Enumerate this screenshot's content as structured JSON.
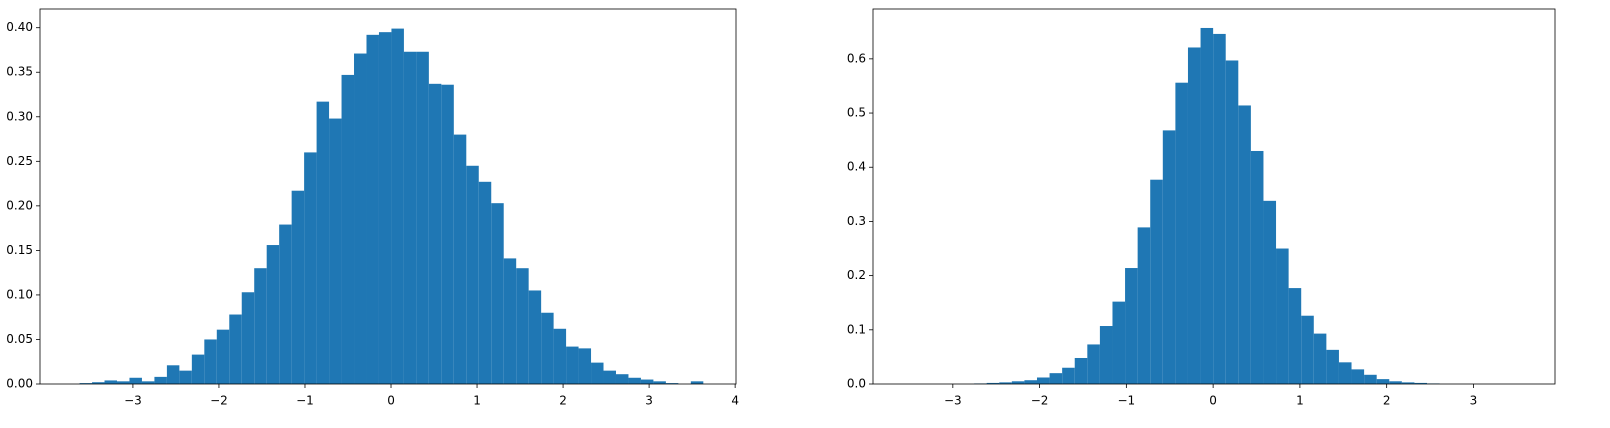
{
  "chart_data": [
    {
      "type": "histogram",
      "color": "#1f77b4",
      "bins": [
        -3.62,
        -3.475,
        -3.33,
        -3.185,
        -3.04,
        -2.895,
        -2.75,
        -2.605,
        -2.46,
        -2.315,
        -2.17,
        -2.025,
        -1.88,
        -1.735,
        -1.59,
        -1.445,
        -1.3,
        -1.155,
        -1.01,
        -0.865,
        -0.72,
        -0.575,
        -0.43,
        -0.285,
        -0.14,
        0.005,
        0.15,
        0.295,
        0.44,
        0.585,
        0.73,
        0.875,
        1.02,
        1.165,
        1.31,
        1.455,
        1.6,
        1.745,
        1.89,
        2.035,
        2.18,
        2.325,
        2.47,
        2.615,
        2.76,
        2.905,
        3.05,
        3.195,
        3.34,
        3.485,
        3.63
      ],
      "values": [
        0.001,
        0.002,
        0.004,
        0.003,
        0.007,
        0.003,
        0.008,
        0.021,
        0.015,
        0.033,
        0.05,
        0.061,
        0.078,
        0.103,
        0.13,
        0.156,
        0.179,
        0.217,
        0.26,
        0.317,
        0.298,
        0.347,
        0.371,
        0.392,
        0.395,
        0.399,
        0.373,
        0.373,
        0.337,
        0.336,
        0.28,
        0.245,
        0.227,
        0.203,
        0.141,
        0.13,
        0.105,
        0.08,
        0.062,
        0.042,
        0.04,
        0.024,
        0.015,
        0.011,
        0.007,
        0.005,
        0.003,
        0.001,
        0,
        0.003
      ],
      "xlim": [
        -4.08,
        4.01
      ],
      "xticks": [
        {
          "value": -3,
          "label": "−3"
        },
        {
          "value": -2,
          "label": "−2"
        },
        {
          "value": -1,
          "label": "−1"
        },
        0,
        1,
        2,
        3,
        4
      ],
      "ylim": [
        0,
        0.421
      ],
      "yticks": [
        {
          "value": 0,
          "label": "0.00"
        },
        {
          "value": 0.05,
          "label": "0.05"
        },
        {
          "value": 0.1,
          "label": "0.10"
        },
        {
          "value": 0.15,
          "label": "0.15"
        },
        {
          "value": 0.2,
          "label": "0.20"
        },
        {
          "value": 0.25,
          "label": "0.25"
        },
        {
          "value": 0.3,
          "label": "0.30"
        },
        {
          "value": 0.35,
          "label": "0.35"
        },
        {
          "value": 0.4,
          "label": "0.40"
        }
      ]
    },
    {
      "type": "histogram",
      "color": "#1f77b4",
      "bins": [
        -3.625,
        -3.48,
        -3.335,
        -3.19,
        -3.045,
        -2.9,
        -2.755,
        -2.61,
        -2.465,
        -2.32,
        -2.175,
        -2.03,
        -1.885,
        -1.74,
        -1.595,
        -1.45,
        -1.305,
        -1.16,
        -1.015,
        -0.87,
        -0.725,
        -0.58,
        -0.435,
        -0.29,
        -0.145,
        0,
        0.145,
        0.29,
        0.435,
        0.58,
        0.725,
        0.87,
        1.015,
        1.16,
        1.305,
        1.45,
        1.595,
        1.74,
        1.885,
        2.03,
        2.175,
        2.32,
        2.465,
        2.61,
        2.755,
        2.9,
        3.045,
        3.19,
        3.335,
        3.48,
        3.625
      ],
      "values": [
        0,
        0,
        0,
        0,
        0,
        0,
        0.001,
        0.002,
        0.003,
        0.005,
        0.007,
        0.012,
        0.02,
        0.03,
        0.048,
        0.073,
        0.107,
        0.152,
        0.214,
        0.289,
        0.377,
        0.468,
        0.556,
        0.621,
        0.657,
        0.646,
        0.597,
        0.514,
        0.43,
        0.338,
        0.25,
        0.177,
        0.126,
        0.093,
        0.063,
        0.04,
        0.027,
        0.017,
        0.009,
        0.005,
        0.003,
        0.002,
        0.001,
        0,
        0,
        0,
        0,
        0,
        0,
        0
      ],
      "xlim": [
        -3.92,
        3.94
      ],
      "xticks": [
        {
          "value": -3,
          "label": "−3"
        },
        {
          "value": -2,
          "label": "−2"
        },
        {
          "value": -1,
          "label": "−1"
        },
        0,
        1,
        2,
        3
      ],
      "ylim": [
        0,
        0.692
      ],
      "yticks": [
        {
          "value": 0,
          "label": "0.0"
        },
        {
          "value": 0.1,
          "label": "0.1"
        },
        {
          "value": 0.2,
          "label": "0.2"
        },
        {
          "value": 0.3,
          "label": "0.3"
        },
        {
          "value": 0.4,
          "label": "0.4"
        },
        {
          "value": 0.5,
          "label": "0.5"
        },
        {
          "value": 0.6,
          "label": "0.6"
        }
      ]
    }
  ]
}
